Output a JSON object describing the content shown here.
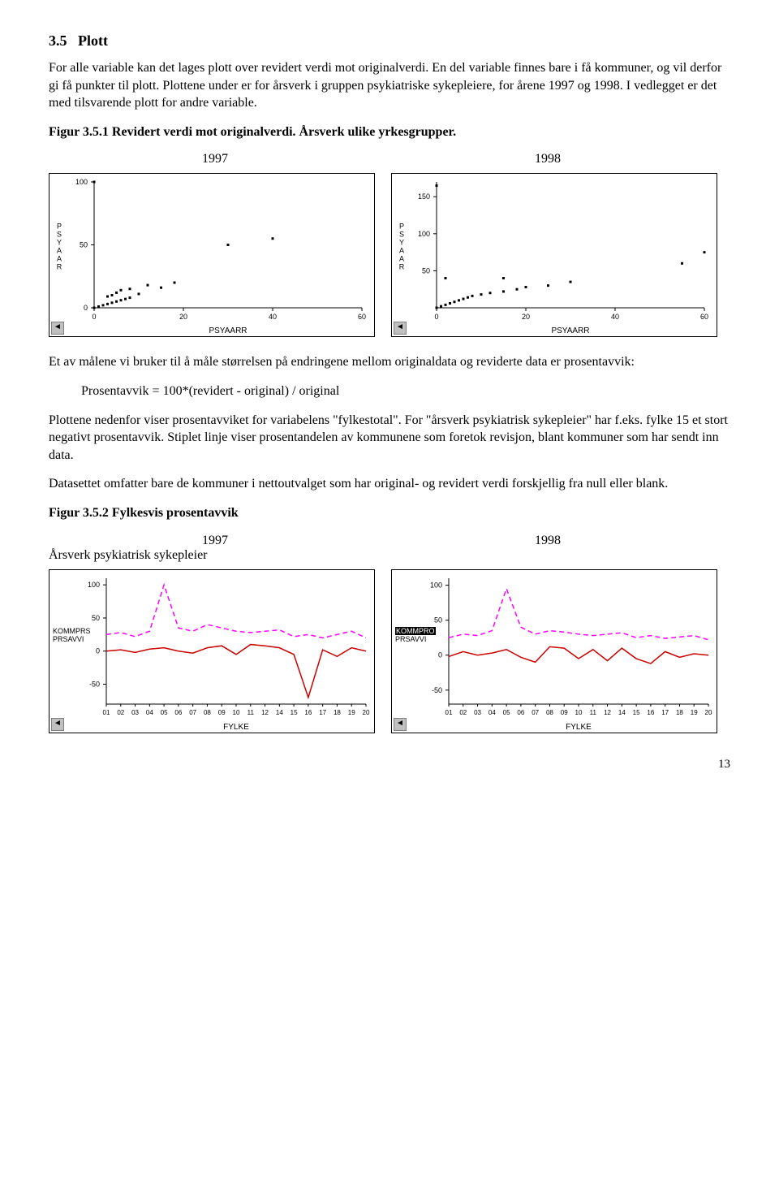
{
  "section": {
    "number": "3.5",
    "title": "Plott"
  },
  "para1": "For alle variable kan det lages plott over revidert verdi mot originalverdi. En del variable finnes bare i få kommuner, og vil derfor gi få punkter til plott. Plottene under er for årsverk i gruppen psykiatriske sykepleiere, for årene 1997 og 1998. I vedlegget er det med tilsvarende plott for andre variable.",
  "fig1": {
    "caption": "Figur 3.5.1 Revidert verdi mot originalverdi. Årsverk ulike yrkesgrupper.",
    "year_left": "1997",
    "year_right": "1998"
  },
  "scatter1997": {
    "type": "scatter",
    "xlabel": "PSYAARR",
    "ylabel": "PSYAAR",
    "xlim": [
      0,
      60
    ],
    "xtick_step": 20,
    "ylim": [
      0,
      100
    ],
    "ytick_step": 50,
    "label_fontsize": 9,
    "marker": "square",
    "marker_size": 3,
    "marker_color": "#000000",
    "background_color": "#ffffff",
    "points": [
      [
        0,
        0
      ],
      [
        1,
        1
      ],
      [
        2,
        2
      ],
      [
        3,
        3
      ],
      [
        4,
        4
      ],
      [
        5,
        5
      ],
      [
        6,
        6
      ],
      [
        7,
        7
      ],
      [
        8,
        8
      ],
      [
        3,
        9
      ],
      [
        4,
        10
      ],
      [
        5,
        12
      ],
      [
        6,
        14
      ],
      [
        8,
        15
      ],
      [
        10,
        11
      ],
      [
        12,
        18
      ],
      [
        15,
        16
      ],
      [
        18,
        20
      ],
      [
        0,
        100
      ],
      [
        30,
        50
      ],
      [
        40,
        55
      ]
    ]
  },
  "scatter1998": {
    "type": "scatter",
    "xlabel": "PSYAARR",
    "ylabel": "PSYAAR",
    "xlim": [
      0,
      60
    ],
    "xtick_step": 20,
    "ylim": [
      0,
      170
    ],
    "yticks": [
      50,
      100,
      150
    ],
    "label_fontsize": 9,
    "marker": "square",
    "marker_size": 3,
    "marker_color": "#000000",
    "background_color": "#ffffff",
    "points": [
      [
        0,
        0
      ],
      [
        1,
        2
      ],
      [
        2,
        4
      ],
      [
        3,
        6
      ],
      [
        4,
        8
      ],
      [
        5,
        10
      ],
      [
        6,
        12
      ],
      [
        7,
        14
      ],
      [
        8,
        16
      ],
      [
        10,
        18
      ],
      [
        12,
        20
      ],
      [
        15,
        22
      ],
      [
        18,
        25
      ],
      [
        20,
        28
      ],
      [
        25,
        30
      ],
      [
        30,
        35
      ],
      [
        2,
        40
      ],
      [
        15,
        40
      ],
      [
        0,
        165
      ],
      [
        60,
        75
      ],
      [
        55,
        60
      ]
    ]
  },
  "para2": "Et av målene vi bruker til å måle størrelsen på endringene mellom originaldata og reviderte data er prosentavvik:",
  "formula": "Prosentavvik = 100*(revidert - original) / original",
  "para3": "Plottene nedenfor viser prosentavviket for variabelens \"fylkestotal\". For \"årsverk psykiatrisk sykepleier\" har f.eks. fylke 15 et stort negativt prosentavvik. Stiplet linje viser prosentandelen av kommunene som foretok revisjon, blant kommuner som har sendt inn data.",
  "para4": "Datasettet omfatter bare de kommuner i nettoutvalget som har original- og revidert verdi forskjellig fra null eller blank.",
  "fig2": {
    "caption": "Figur 3.5.2 Fylkesvis prosentavvik",
    "year_left": "1997",
    "year_right": "1998",
    "subtitle": "Årsverk psykiatrisk sykepleier"
  },
  "line1997": {
    "type": "line",
    "xlabel": "FYLKE",
    "legend": [
      "KOMMPRS",
      "PRSAVVI"
    ],
    "xticks": [
      "01",
      "02",
      "03",
      "04",
      "05",
      "06",
      "07",
      "08",
      "09",
      "10",
      "11",
      "12",
      "14",
      "15",
      "16",
      "17",
      "18",
      "19",
      "20"
    ],
    "ylim": [
      -80,
      110
    ],
    "yticks": [
      -50,
      0,
      50,
      100
    ],
    "label_fontsize": 9,
    "series": [
      {
        "name": "KOMMPRS",
        "color": "#ff00ff",
        "dash": "6,4",
        "width": 1.5,
        "y": [
          25,
          28,
          22,
          30,
          100,
          35,
          30,
          40,
          35,
          30,
          28,
          30,
          32,
          22,
          25,
          20,
          25,
          30,
          20
        ]
      },
      {
        "name": "PRSAVVI",
        "color": "#cc0000",
        "dash": "",
        "width": 1.5,
        "y": [
          0,
          2,
          -2,
          3,
          5,
          0,
          -3,
          5,
          8,
          -5,
          10,
          8,
          5,
          -5,
          -70,
          2,
          -8,
          5,
          0
        ]
      }
    ]
  },
  "line1998": {
    "type": "line",
    "xlabel": "FYLKE",
    "legend": [
      "KOMMPRO",
      "PRSAVVI"
    ],
    "xticks": [
      "01",
      "02",
      "03",
      "04",
      "05",
      "06",
      "07",
      "08",
      "09",
      "10",
      "11",
      "12",
      "14",
      "15",
      "16",
      "17",
      "18",
      "19",
      "20"
    ],
    "ylim": [
      -70,
      110
    ],
    "yticks": [
      -50,
      0,
      50,
      100
    ],
    "label_fontsize": 9,
    "series": [
      {
        "name": "KOMMPRO",
        "color": "#ff00ff",
        "dash": "6,4",
        "width": 1.5,
        "y": [
          25,
          30,
          28,
          35,
          95,
          40,
          30,
          35,
          33,
          30,
          28,
          30,
          32,
          25,
          28,
          24,
          26,
          28,
          22
        ]
      },
      {
        "name": "PRSAVVI",
        "color": "#cc0000",
        "dash": "",
        "width": 1.5,
        "y": [
          -2,
          5,
          0,
          3,
          8,
          -3,
          -10,
          12,
          10,
          -5,
          8,
          -8,
          10,
          -5,
          -12,
          5,
          -3,
          2,
          0
        ]
      }
    ]
  },
  "pagenum": "13"
}
